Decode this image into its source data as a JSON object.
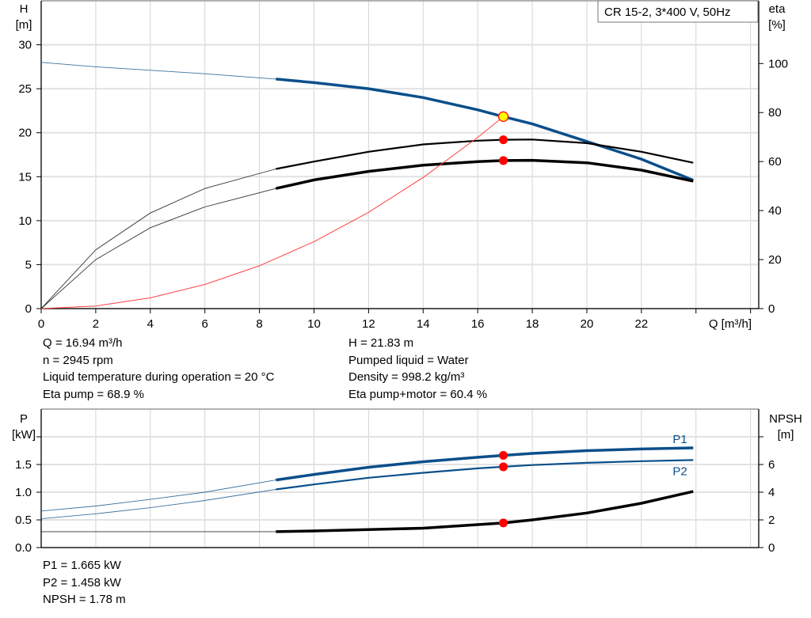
{
  "chart_data": [
    {
      "type": "line",
      "title_box": "CR 15-2, 3*400 V, 50Hz",
      "xlabel": "Q [m³/h]",
      "ylabel": "H",
      "ylabel_unit": "[m]",
      "y2label": "eta",
      "y2label_unit": "[%]",
      "xlim": [
        0,
        26.3
      ],
      "ylim": [
        0,
        35
      ],
      "y2lim": [
        0,
        125.6
      ],
      "xticks": [
        "0",
        "2",
        "4",
        "6",
        "8",
        "10",
        "12",
        "14",
        "16",
        "18",
        "20",
        "22"
      ],
      "xtick_values": [
        0,
        2,
        4,
        6,
        8,
        10,
        12,
        14,
        16,
        18,
        20,
        22
      ],
      "yticks": [
        0,
        5,
        10,
        15,
        20,
        25,
        30
      ],
      "y2ticks": [
        0,
        20,
        40,
        60,
        80,
        100
      ],
      "grid": true,
      "series": [
        {
          "key": "H",
          "axis": "left",
          "color": "#0b4f8a",
          "x": [
            0,
            2,
            4,
            6,
            8.6,
            10,
            12,
            14,
            16,
            16.94,
            18,
            20,
            22,
            23.9
          ],
          "y": [
            28,
            27.5,
            27.1,
            26.7,
            26.1,
            25.7,
            25,
            24,
            22.6,
            21.83,
            21,
            19,
            17,
            14.6
          ]
        },
        {
          "key": "eta_pump",
          "axis": "right",
          "color": "#000000",
          "x": [
            0,
            2,
            4,
            6,
            8.6,
            10,
            12,
            14,
            16,
            16.94,
            18,
            20,
            22,
            23.9
          ],
          "y": [
            0,
            24,
            39,
            49,
            57,
            60,
            64,
            67,
            68.5,
            68.9,
            69,
            67.5,
            64,
            59.5
          ]
        },
        {
          "key": "eta_pump_motor",
          "axis": "right",
          "color": "#000000",
          "x": [
            0,
            2,
            4,
            6,
            8.6,
            10,
            12,
            14,
            16,
            16.94,
            18,
            20,
            22,
            23.9
          ],
          "y": [
            0,
            20,
            33,
            41.5,
            49,
            52.5,
            56,
            58.5,
            60,
            60.4,
            60.5,
            59.5,
            56.5,
            52
          ]
        },
        {
          "key": "system_curve",
          "axis": "left",
          "color": "#ff4040",
          "x": [
            0,
            2,
            4,
            6,
            8,
            10,
            12,
            14,
            16,
            16.94
          ],
          "y": [
            0,
            0.3,
            1.22,
            2.74,
            4.87,
            7.61,
            10.95,
            14.91,
            19.47,
            21.83
          ]
        }
      ],
      "duty_point": {
        "Q": 16.94,
        "H": 21.83,
        "eta_pump": 68.9,
        "eta_pump_motor": 60.4
      },
      "operating_range_start_Q": 8.6
    },
    {
      "type": "line",
      "ylabel": "P",
      "ylabel_unit": "[kW]",
      "y2label": "NPSH",
      "y2label_unit": "[m]",
      "xlim": [
        0,
        26.3
      ],
      "ylim": [
        0,
        2.5
      ],
      "y2lim": [
        0,
        10
      ],
      "yticks": [
        "0.0",
        "0.5",
        "1.0",
        "1.5",
        ""
      ],
      "ytick_values": [
        0,
        0.5,
        1,
        1.5,
        2
      ],
      "y2ticks": [
        "0",
        "2",
        "4",
        "6",
        ""
      ],
      "y2tick_values": [
        0,
        2,
        4,
        6,
        8
      ],
      "grid": true,
      "series": [
        {
          "key": "P1",
          "name": "P1",
          "axis": "left",
          "color": "#0b4f8a",
          "x": [
            0,
            2,
            4,
            6,
            8.6,
            10,
            12,
            14,
            16,
            16.94,
            18,
            20,
            22,
            23.9
          ],
          "y": [
            0.66,
            0.75,
            0.87,
            1.0,
            1.22,
            1.32,
            1.45,
            1.55,
            1.63,
            1.665,
            1.7,
            1.75,
            1.78,
            1.8
          ]
        },
        {
          "key": "P2",
          "name": "P2",
          "axis": "left",
          "color": "#0b4f8a",
          "x": [
            0,
            2,
            4,
            6,
            8.6,
            10,
            12,
            14,
            16,
            16.94,
            18,
            20,
            22,
            23.9
          ],
          "y": [
            0.52,
            0.61,
            0.72,
            0.85,
            1.05,
            1.14,
            1.26,
            1.35,
            1.43,
            1.458,
            1.49,
            1.53,
            1.56,
            1.58
          ]
        },
        {
          "key": "NPSH",
          "axis": "right",
          "color": "#000000",
          "x": [
            0,
            8.6,
            10,
            12,
            14,
            16.94,
            18,
            20,
            22,
            23.9
          ],
          "y": [
            1.15,
            1.15,
            1.2,
            1.3,
            1.4,
            1.78,
            2.0,
            2.5,
            3.2,
            4.05
          ]
        }
      ],
      "duty_point": {
        "Q": 16.94,
        "P1": 1.665,
        "P2": 1.458,
        "NPSH": 1.78
      },
      "operating_range_start_Q": 8.6
    }
  ],
  "info_left": [
    "Q = 16.94 m³/h",
    "n = 2945 rpm",
    "Liquid temperature during operation = 20 °C",
    "Eta pump = 68.9 %"
  ],
  "info_right": [
    "H = 21.83 m",
    "Pumped liquid = Water",
    "Density = 998.2 kg/m³",
    "Eta pump+motor = 60.4 %"
  ],
  "info_bottom": [
    "P1 = 1.665 kW",
    "P2 = 1.458 kW",
    "NPSH = 1.78 m"
  ]
}
